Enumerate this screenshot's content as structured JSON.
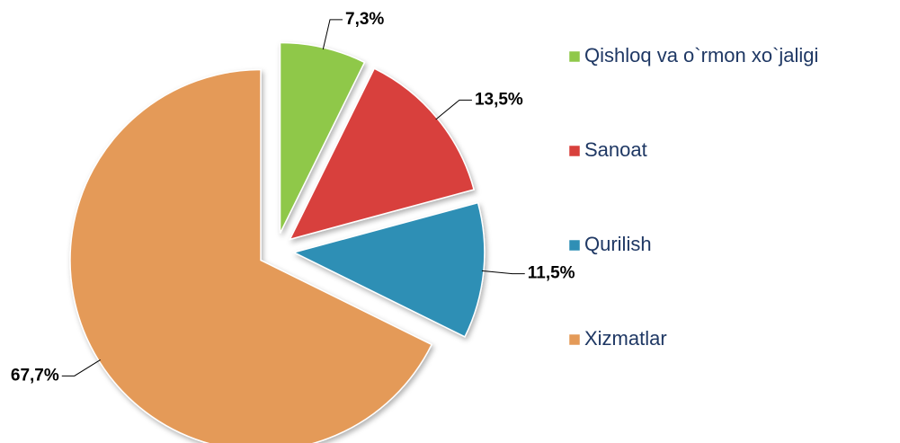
{
  "chart_data": {
    "type": "pie",
    "categories": [
      "Qishloq va o`rmon xo`jaligi",
      "Sanoat",
      "Qurilish",
      "Xizmatlar"
    ],
    "values": [
      7.3,
      13.5,
      11.5,
      67.7
    ],
    "value_labels": [
      "7,3%",
      "13,5%",
      "11,5%",
      "67,7%"
    ],
    "colors": [
      "#8fc84a",
      "#d8403c",
      "#2f8fb5",
      "#e49a58"
    ],
    "legend": "right"
  }
}
